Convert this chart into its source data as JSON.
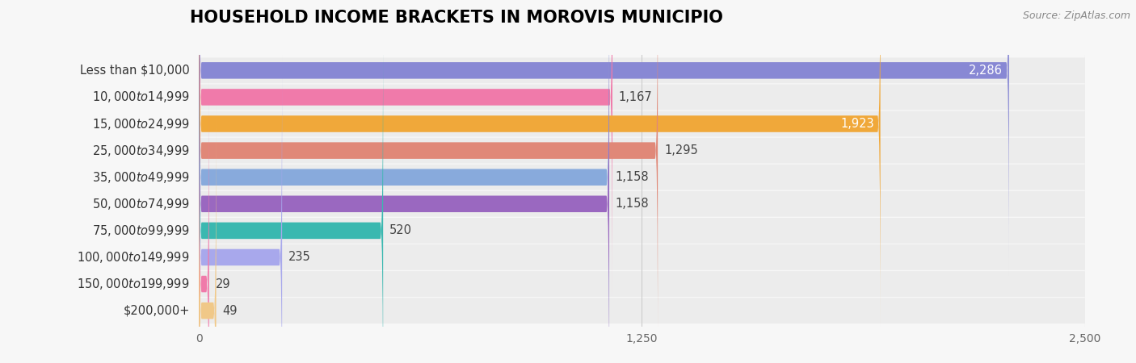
{
  "title": "HOUSEHOLD INCOME BRACKETS IN MOROVIS MUNICIPIO",
  "source": "Source: ZipAtlas.com",
  "categories": [
    "Less than $10,000",
    "$10,000 to $14,999",
    "$15,000 to $24,999",
    "$25,000 to $34,999",
    "$35,000 to $49,999",
    "$50,000 to $74,999",
    "$75,000 to $99,999",
    "$100,000 to $149,999",
    "$150,000 to $199,999",
    "$200,000+"
  ],
  "values": [
    2286,
    1167,
    1923,
    1295,
    1158,
    1158,
    520,
    235,
    29,
    49
  ],
  "bar_colors": [
    "#8888d4",
    "#f07aaa",
    "#f0a83a",
    "#e08878",
    "#88aadc",
    "#9a68c0",
    "#3ab8b0",
    "#a8a8ec",
    "#f07aaa",
    "#f0c888"
  ],
  "value_label_inside": [
    true,
    false,
    true,
    false,
    false,
    false,
    false,
    false,
    false,
    false
  ],
  "xlim": [
    0,
    2500
  ],
  "xticks": [
    0,
    1250,
    2500
  ],
  "background_color": "#f7f7f7",
  "row_bg_color": "#ececec",
  "title_fontsize": 15,
  "label_fontsize": 10.5,
  "value_fontsize": 10.5
}
